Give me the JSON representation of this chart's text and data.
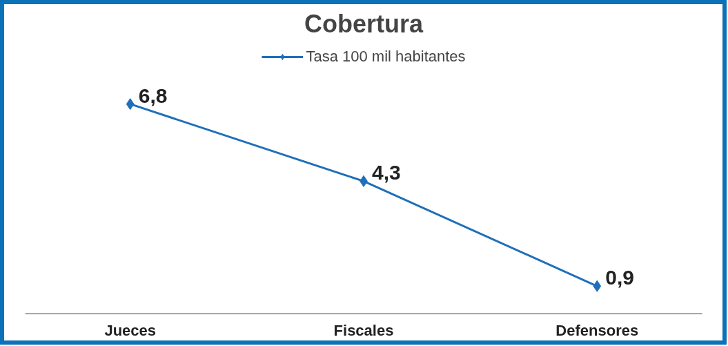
{
  "chart_data": {
    "type": "line",
    "title": "Cobertura",
    "categories": [
      "Jueces",
      "Fiscales",
      "Defensores"
    ],
    "series": [
      {
        "name": "Tasa 100 mil habitantes",
        "color": "#1f6fba",
        "values": [
          6.8,
          4.3,
          0.9
        ],
        "value_labels": [
          "6,8",
          "4,3",
          "0,9"
        ]
      }
    ],
    "tick_labels": "x",
    "marker": "diamond",
    "line_style": "solid",
    "legend": "top"
  }
}
